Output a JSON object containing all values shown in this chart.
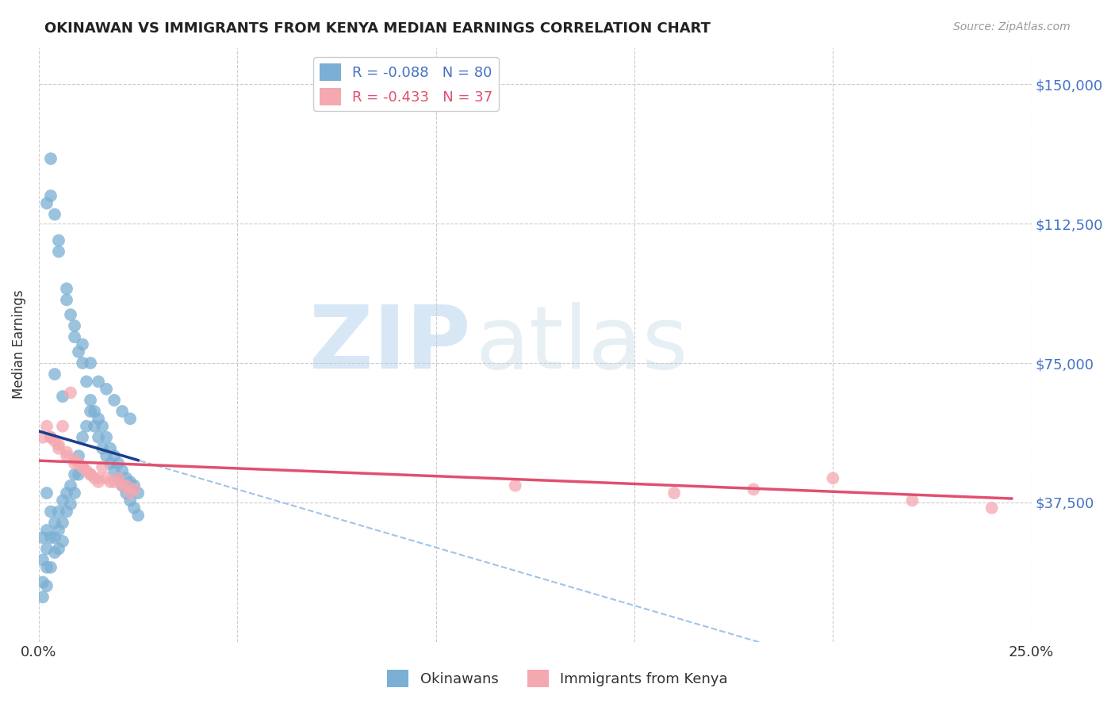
{
  "title": "OKINAWAN VS IMMIGRANTS FROM KENYA MEDIAN EARNINGS CORRELATION CHART",
  "source": "Source: ZipAtlas.com",
  "ylabel": "Median Earnings",
  "xlim": [
    0.0,
    0.25
  ],
  "ylim": [
    0,
    160000
  ],
  "yticks": [
    0,
    37500,
    75000,
    112500,
    150000
  ],
  "ytick_labels": [
    "",
    "$37,500",
    "$75,000",
    "$112,500",
    "$150,000"
  ],
  "xticks": [
    0.0,
    0.05,
    0.1,
    0.15,
    0.2,
    0.25
  ],
  "xtick_labels": [
    "0.0%",
    "",
    "",
    "",
    "",
    "25.0%"
  ],
  "blue_R": -0.088,
  "blue_N": 80,
  "pink_R": -0.433,
  "pink_N": 37,
  "blue_color": "#7bafd4",
  "pink_color": "#f4a8b0",
  "blue_line_color": "#1a3e8c",
  "pink_line_color": "#e05070",
  "blue_scatter_x": [
    0.001,
    0.001,
    0.001,
    0.001,
    0.002,
    0.002,
    0.002,
    0.002,
    0.002,
    0.003,
    0.003,
    0.003,
    0.003,
    0.004,
    0.004,
    0.004,
    0.004,
    0.005,
    0.005,
    0.005,
    0.005,
    0.006,
    0.006,
    0.006,
    0.007,
    0.007,
    0.007,
    0.008,
    0.008,
    0.008,
    0.009,
    0.009,
    0.009,
    0.01,
    0.01,
    0.01,
    0.011,
    0.011,
    0.012,
    0.012,
    0.013,
    0.013,
    0.014,
    0.014,
    0.015,
    0.015,
    0.016,
    0.016,
    0.017,
    0.017,
    0.018,
    0.018,
    0.019,
    0.019,
    0.02,
    0.02,
    0.021,
    0.021,
    0.022,
    0.022,
    0.023,
    0.023,
    0.024,
    0.024,
    0.025,
    0.025,
    0.003,
    0.005,
    0.007,
    0.009,
    0.011,
    0.013,
    0.015,
    0.017,
    0.019,
    0.021,
    0.023,
    0.002,
    0.004,
    0.006
  ],
  "blue_scatter_y": [
    28000,
    22000,
    16000,
    12000,
    30000,
    25000,
    20000,
    15000,
    40000,
    35000,
    28000,
    20000,
    130000,
    32000,
    28000,
    24000,
    115000,
    35000,
    30000,
    25000,
    105000,
    38000,
    32000,
    27000,
    92000,
    40000,
    35000,
    88000,
    42000,
    37000,
    82000,
    45000,
    40000,
    78000,
    50000,
    45000,
    75000,
    55000,
    70000,
    58000,
    65000,
    62000,
    62000,
    58000,
    60000,
    55000,
    58000,
    52000,
    55000,
    50000,
    52000,
    48000,
    50000,
    46000,
    48000,
    44000,
    46000,
    42000,
    44000,
    40000,
    43000,
    38000,
    42000,
    36000,
    40000,
    34000,
    120000,
    108000,
    95000,
    85000,
    80000,
    75000,
    70000,
    68000,
    65000,
    62000,
    60000,
    118000,
    72000,
    66000
  ],
  "pink_scatter_x": [
    0.001,
    0.002,
    0.003,
    0.004,
    0.005,
    0.006,
    0.007,
    0.008,
    0.009,
    0.01,
    0.011,
    0.012,
    0.013,
    0.014,
    0.015,
    0.016,
    0.017,
    0.018,
    0.019,
    0.02,
    0.021,
    0.022,
    0.023,
    0.024,
    0.003,
    0.005,
    0.007,
    0.009,
    0.011,
    0.013,
    0.015,
    0.12,
    0.16,
    0.18,
    0.2,
    0.22,
    0.24
  ],
  "pink_scatter_y": [
    55000,
    58000,
    55000,
    54000,
    53000,
    58000,
    51000,
    67000,
    49000,
    48000,
    47000,
    46000,
    45000,
    44000,
    44000,
    47000,
    44000,
    43000,
    43000,
    44000,
    42000,
    42000,
    40000,
    41000,
    55000,
    52000,
    50000,
    48000,
    47000,
    45000,
    43000,
    42000,
    40000,
    41000,
    44000,
    38000,
    36000
  ],
  "watermark_zip": "ZIP",
  "watermark_atlas": "atlas",
  "legend_x1": "Okinawans",
  "legend_x2": "Immigrants from Kenya"
}
